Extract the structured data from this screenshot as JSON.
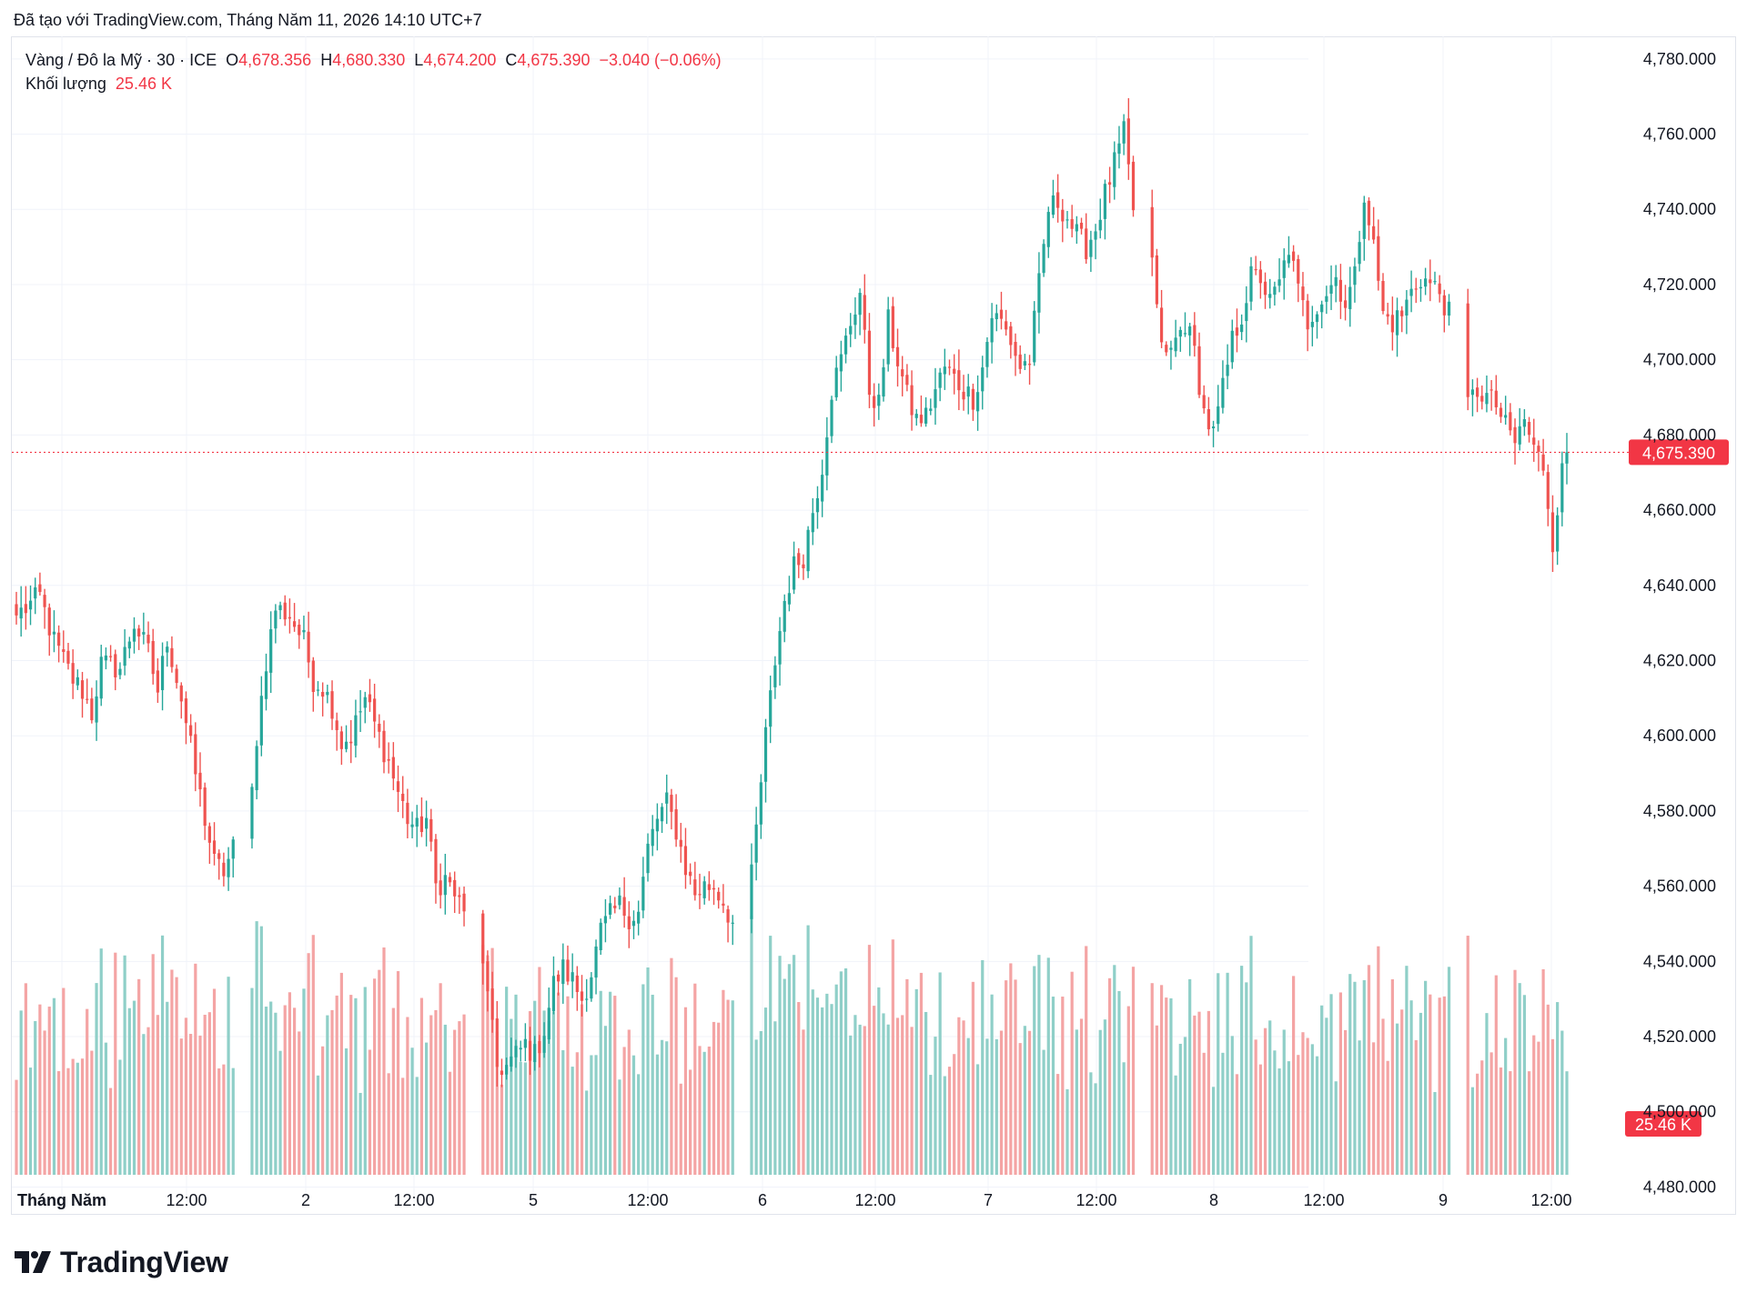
{
  "header": {
    "credit": "Đã tạo với TradingView.com, Tháng Năm 11, 2026 14:10 UTC+7"
  },
  "legend": {
    "symbol": "Vàng / Đô la Mỹ · 30 · ICE",
    "open_label": "O",
    "open": "4,678.356",
    "high_label": "H",
    "high": "4,680.330",
    "low_label": "L",
    "low": "4,674.200",
    "close_label": "C",
    "close": "4,675.390",
    "change": "−3.040 (−0.06%)",
    "volume_label": "Khối lượng",
    "volume": "25.46 K"
  },
  "colors": {
    "up": "#26a69a",
    "down": "#ef5350",
    "up_vol": "#8fcfc8",
    "down_vol": "#f4a4a4",
    "last_price": "#f23645",
    "grid": "#f0f3fa"
  },
  "logo": {
    "text": "TradingView"
  },
  "chart_data": {
    "type": "candlestick",
    "timeframe": "30",
    "y_axis": {
      "ticks": [
        "4,780.000",
        "4,760.000",
        "4,740.000",
        "4,720.000",
        "4,700.000",
        "4,680.000",
        "4,660.000",
        "4,640.000",
        "4,620.000",
        "4,600.000",
        "4,580.000",
        "4,560.000",
        "4,540.000",
        "4,520.000",
        "4,500.000",
        "4,480.000"
      ],
      "ylim": [
        4476,
        4786
      ],
      "side": "right"
    },
    "x_axis": {
      "ticks": [
        "Tháng Năm",
        "12:00",
        "2",
        "12:00",
        "5",
        "12:00",
        "6",
        "12:00",
        "7",
        "12:00",
        "8",
        "12:00",
        "9",
        "12:00"
      ]
    },
    "last_price": {
      "value": 4675.39,
      "label": "4,675.390"
    },
    "last_volume": {
      "label": "25.46 K"
    },
    "anchors": [
      [
        0,
        4632
      ],
      [
        5,
        4637
      ],
      [
        8,
        4625
      ],
      [
        12,
        4615
      ],
      [
        14,
        4612
      ],
      [
        16,
        4606
      ],
      [
        18,
        4619
      ],
      [
        22,
        4618
      ],
      [
        25,
        4630
      ],
      [
        28,
        4622
      ],
      [
        30,
        4612
      ],
      [
        32,
        4626
      ],
      [
        35,
        4610
      ],
      [
        38,
        4590
      ],
      [
        40,
        4578
      ],
      [
        42,
        4566
      ],
      [
        44,
        4564
      ],
      [
        46,
        4570
      ],
      [
        48,
        4600
      ],
      [
        50,
        4620
      ],
      [
        52,
        4634
      ],
      [
        55,
        4632
      ],
      [
        58,
        4625
      ],
      [
        60,
        4615
      ],
      [
        62,
        4613
      ],
      [
        64,
        4608
      ],
      [
        66,
        4598
      ],
      [
        68,
        4600
      ],
      [
        71,
        4610
      ],
      [
        73,
        4603
      ],
      [
        76,
        4593
      ],
      [
        78,
        4585
      ],
      [
        80,
        4578
      ],
      [
        82,
        4575
      ],
      [
        84,
        4578
      ],
      [
        86,
        4560
      ],
      [
        88,
        4562
      ],
      [
        90,
        4558
      ],
      [
        92,
        4552
      ],
      [
        94,
        4530
      ],
      [
        96,
        4512
      ],
      [
        98,
        4512
      ],
      [
        100,
        4515
      ],
      [
        102,
        4518
      ],
      [
        104,
        4515
      ],
      [
        106,
        4522
      ],
      [
        108,
        4534
      ],
      [
        110,
        4538
      ],
      [
        112,
        4535
      ],
      [
        114,
        4530
      ],
      [
        116,
        4537
      ],
      [
        118,
        4548
      ],
      [
        120,
        4552
      ],
      [
        122,
        4555
      ],
      [
        124,
        4552
      ],
      [
        126,
        4553
      ],
      [
        128,
        4570
      ],
      [
        130,
        4578
      ],
      [
        132,
        4582
      ],
      [
        134,
        4575
      ],
      [
        136,
        4565
      ],
      [
        138,
        4558
      ],
      [
        140,
        4560
      ],
      [
        142,
        4560
      ],
      [
        144,
        4556
      ],
      [
        146,
        4550
      ],
      [
        148,
        4575
      ],
      [
        150,
        4600
      ],
      [
        152,
        4620
      ],
      [
        154,
        4636
      ],
      [
        156,
        4645
      ],
      [
        158,
        4648
      ],
      [
        160,
        4660
      ],
      [
        162,
        4672
      ],
      [
        164,
        4692
      ],
      [
        166,
        4700
      ],
      [
        168,
        4710
      ],
      [
        170,
        4718
      ],
      [
        172,
        4692
      ],
      [
        174,
        4688
      ],
      [
        176,
        4710
      ],
      [
        178,
        4700
      ],
      [
        180,
        4690
      ],
      [
        182,
        4684
      ],
      [
        184,
        4685
      ],
      [
        186,
        4692
      ],
      [
        188,
        4698
      ],
      [
        190,
        4695
      ],
      [
        192,
        4692
      ],
      [
        194,
        4690
      ],
      [
        196,
        4698
      ],
      [
        198,
        4712
      ],
      [
        200,
        4710
      ],
      [
        202,
        4705
      ],
      [
        204,
        4698
      ],
      [
        206,
        4700
      ],
      [
        208,
        4720
      ],
      [
        210,
        4740
      ],
      [
        212,
        4742
      ],
      [
        214,
        4738
      ],
      [
        216,
        4733
      ],
      [
        218,
        4730
      ],
      [
        220,
        4735
      ],
      [
        222,
        4744
      ],
      [
        224,
        4752
      ],
      [
        226,
        4760
      ],
      [
        228,
        4740
      ],
      [
        230,
        4712
      ],
      [
        232,
        4700
      ],
      [
        234,
        4705
      ],
      [
        236,
        4710
      ],
      [
        238,
        4702
      ],
      [
        240,
        4686
      ],
      [
        242,
        4680
      ],
      [
        244,
        4692
      ],
      [
        246,
        4705
      ],
      [
        248,
        4712
      ],
      [
        250,
        4722
      ],
      [
        252,
        4722
      ],
      [
        254,
        4715
      ],
      [
        256,
        4720
      ],
      [
        258,
        4730
      ],
      [
        260,
        4718
      ],
      [
        262,
        4710
      ],
      [
        264,
        4715
      ],
      [
        266,
        4718
      ],
      [
        268,
        4722
      ],
      [
        270,
        4715
      ],
      [
        272,
        4722
      ],
      [
        274,
        4745
      ],
      [
        276,
        4730
      ],
      [
        278,
        4712
      ],
      [
        280,
        4710
      ],
      [
        282,
        4712
      ],
      [
        284,
        4718
      ],
      [
        286,
        4722
      ],
      [
        288,
        4720
      ],
      [
        290,
        4718
      ],
      [
        292,
        4712
      ],
      [
        293,
        4688
      ],
      [
        295,
        4692
      ],
      [
        297,
        4690
      ],
      [
        299,
        4688
      ],
      [
        301,
        4682
      ],
      [
        303,
        4678
      ],
      [
        305,
        4684
      ],
      [
        307,
        4676
      ],
      [
        309,
        4672
      ],
      [
        311,
        4652
      ],
      [
        313,
        4670
      ],
      [
        314,
        4675.39
      ]
    ],
    "gaps_after": [
      46,
      92,
      146,
      228,
      292
    ],
    "volume_ylim": [
      0,
      75
    ]
  }
}
